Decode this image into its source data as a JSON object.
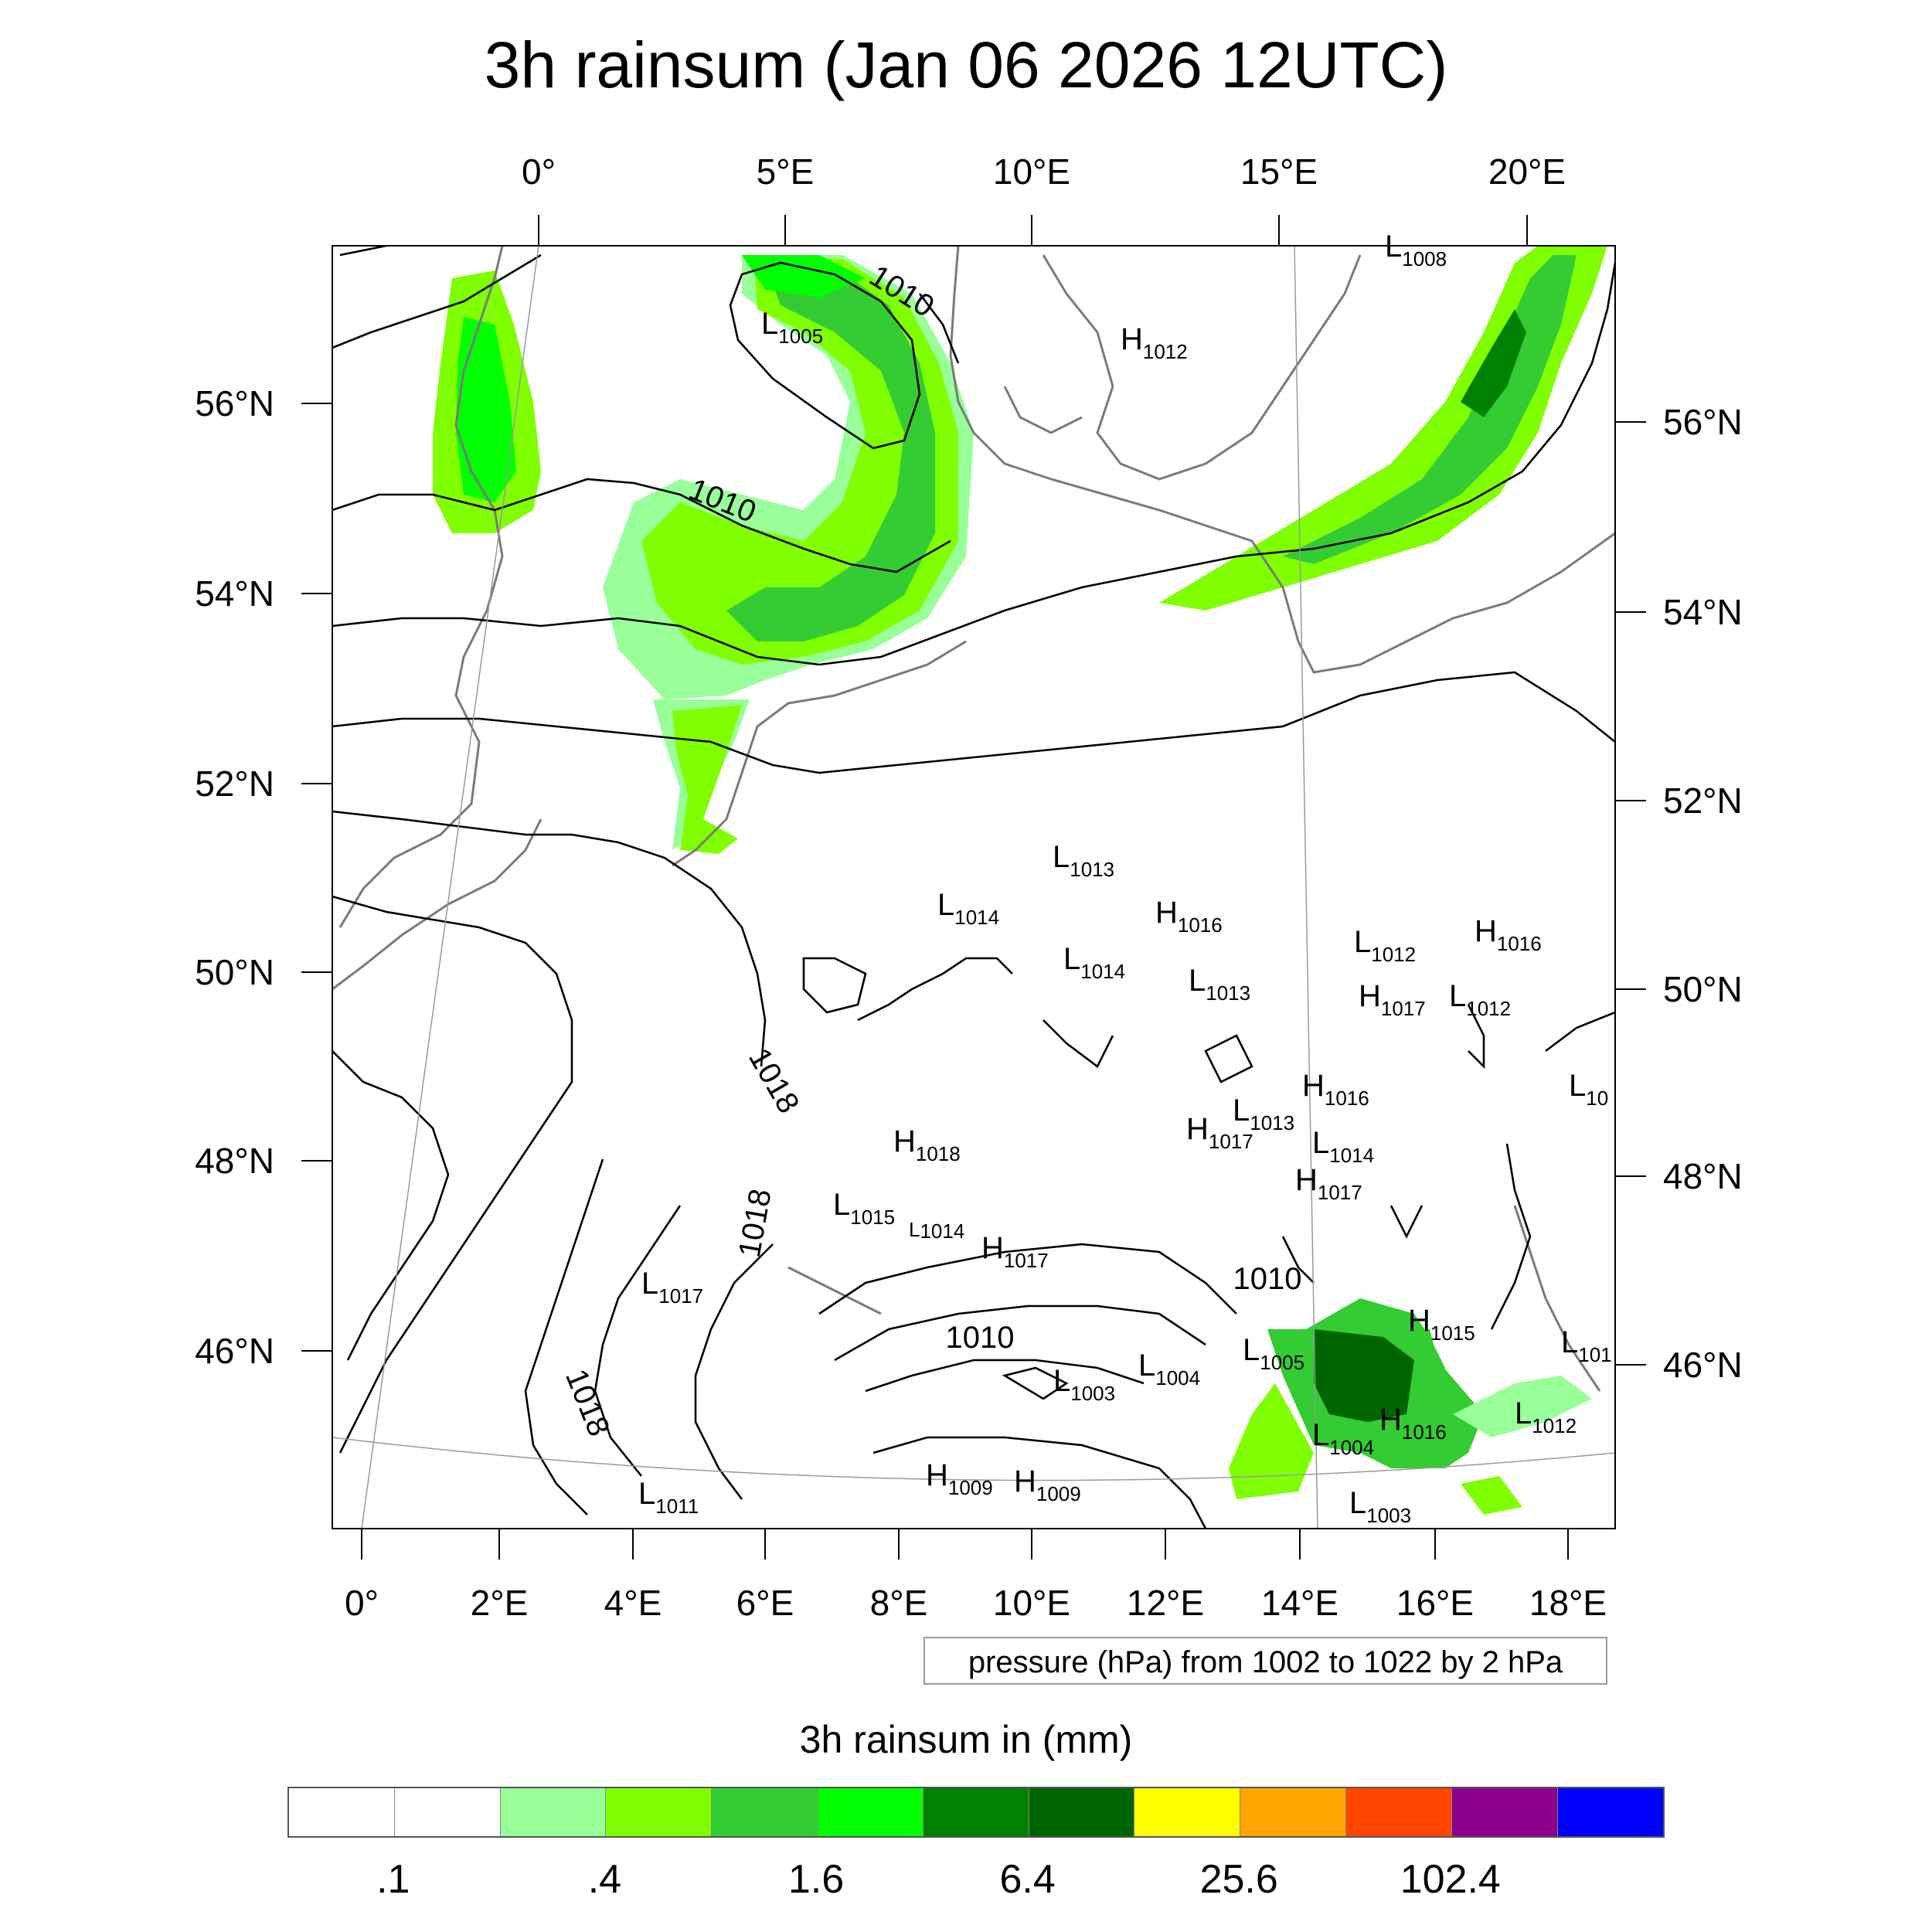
{
  "title": "3h rainsum (Jan 06 2026 12UTC)",
  "map": {
    "top_lon_labels": [
      "0°",
      "5°E",
      "10°E",
      "15°E",
      "20°E"
    ],
    "bottom_lon_labels": [
      "0°",
      "2°E",
      "4°E",
      "6°E",
      "8°E",
      "10°E",
      "12°E",
      "14°E",
      "16°E",
      "18°E"
    ],
    "left_lat_labels": [
      "56°N",
      "54°N",
      "52°N",
      "50°N",
      "48°N",
      "46°N"
    ],
    "right_lat_labels": [
      "56°N",
      "54°N",
      "52°N",
      "50°N",
      "48°N",
      "46°N"
    ],
    "isobar_labels": [
      "1010",
      "1010",
      "1010",
      "1010",
      "1018",
      "1018",
      "1018"
    ],
    "pressure_centers": [
      {
        "type": "L",
        "value": "1008"
      },
      {
        "type": "L",
        "value": "1005"
      },
      {
        "type": "H",
        "value": "1012"
      },
      {
        "type": "L",
        "value": "1013"
      },
      {
        "type": "L",
        "value": "1014"
      },
      {
        "type": "H",
        "value": "1016"
      },
      {
        "type": "L",
        "value": "1012"
      },
      {
        "type": "H",
        "value": "1016"
      },
      {
        "type": "L",
        "value": "1014"
      },
      {
        "type": "L",
        "value": "1013"
      },
      {
        "type": "H",
        "value": "1017"
      },
      {
        "type": "L",
        "value": "1012"
      },
      {
        "type": "H",
        "value": "1016"
      },
      {
        "type": "L",
        "value": "10"
      },
      {
        "type": "H",
        "value": "1017"
      },
      {
        "type": "L",
        "value": "1013"
      },
      {
        "type": "L",
        "value": "1014"
      },
      {
        "type": "H",
        "value": "1017"
      },
      {
        "type": "H",
        "value": "1018"
      },
      {
        "type": "L",
        "value": "1015"
      },
      {
        "type": "L",
        "value": "1014"
      },
      {
        "type": "H",
        "value": "1017"
      },
      {
        "type": "L",
        "value": "1017"
      },
      {
        "type": "H",
        "value": "1015"
      },
      {
        "type": "L",
        "value": "1005"
      },
      {
        "type": "L",
        "value": "1004"
      },
      {
        "type": "L",
        "value": "1003"
      },
      {
        "type": "L",
        "value": "101"
      },
      {
        "type": "L",
        "value": "1004"
      },
      {
        "type": "H",
        "value": "1016"
      },
      {
        "type": "L",
        "value": "1012"
      },
      {
        "type": "H",
        "value": "1009"
      },
      {
        "type": "H",
        "value": "1009"
      },
      {
        "type": "L",
        "value": "1011"
      },
      {
        "type": "L",
        "value": "1003"
      }
    ]
  },
  "contour_note": "pressure (hPa) from 1002 to 1022 by 2 hPa",
  "colorbar": {
    "title": "3h rainsum in (mm)",
    "colors": [
      "#ffffff",
      "#ffffff",
      "#99ff99",
      "#80ff00",
      "#33cc33",
      "#00ff00",
      "#008000",
      "#006400",
      "#ffff00",
      "#ffa500",
      "#ff4500",
      "#8b008b",
      "#0000ff"
    ],
    "tick_labels": [
      ".1",
      ".4",
      "1.6",
      "6.4",
      "25.6",
      "102.4"
    ]
  }
}
